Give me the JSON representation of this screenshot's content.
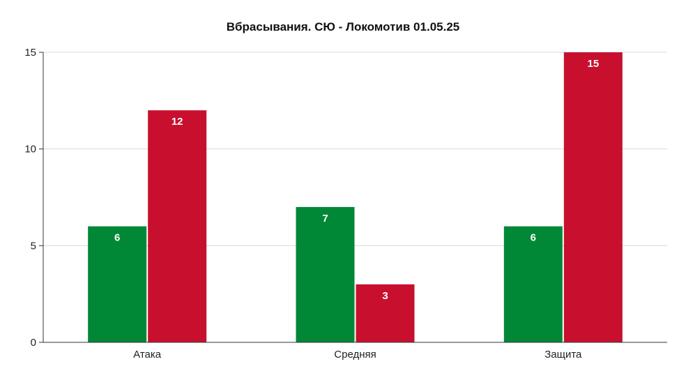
{
  "chart_data": {
    "type": "bar",
    "title": "Вбрасывания. СЮ - Локомотив 01.05.25",
    "xlabel": "",
    "ylabel": "",
    "categories": [
      "Атака",
      "Средняя",
      "Защита"
    ],
    "series": [
      {
        "values": [
          6,
          7,
          6
        ],
        "color": "#008837"
      },
      {
        "values": [
          12,
          3,
          15
        ],
        "color": "#c8102e"
      }
    ],
    "ylim": [
      0,
      15
    ],
    "yticks": [
      0,
      5,
      10,
      15
    ],
    "grid": true,
    "legend": "none"
  }
}
